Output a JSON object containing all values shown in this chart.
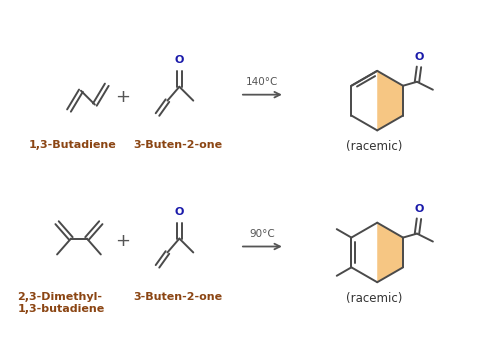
{
  "bg_color": "#ffffff",
  "bond_color": "#4a4a4a",
  "label_color": "#8B4513",
  "oxygen_color": "#1a1aaa",
  "highlight_color": "#f0a030",
  "highlight_alpha": 0.6,
  "reaction1_temp": "140°C",
  "reaction2_temp": "90°C",
  "label1_diene": "1,3-Butadiene",
  "label1_dienophile": "3-Buten-2-one",
  "label1_product": "(racemic)",
  "label2_diene": "2,3-Dimethyl-\n1,3-butadiene",
  "label2_dienophile": "3-Buten-2-one",
  "label2_product": "(racemic)"
}
